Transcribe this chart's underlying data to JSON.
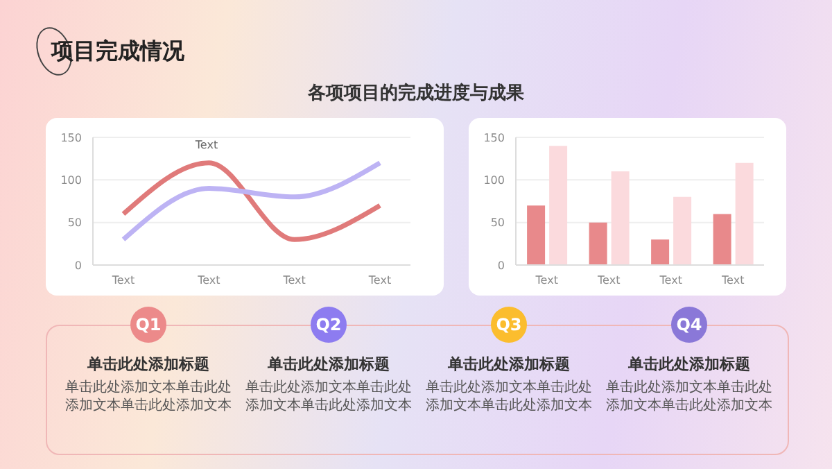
{
  "chart_data": [
    {
      "type": "line",
      "title": "项目完成情况",
      "subtitle": "各项项目的完成进度与成果",
      "categories": [
        "Text",
        "Text",
        "Text",
        "Text"
      ],
      "series": [
        {
          "color": "#e07a7a",
          "values": [
            60,
            120,
            30,
            70
          ]
        },
        {
          "color": "#bdb3f4",
          "values": [
            30,
            90,
            80,
            120
          ]
        }
      ],
      "ylim": [
        0,
        150
      ],
      "yticks": [
        0,
        50,
        100,
        150
      ],
      "grid": "y",
      "annotations": [
        "Text"
      ]
    },
    {
      "type": "bar",
      "categories": [
        "Text",
        "Text",
        "Text",
        "Text"
      ],
      "series": [
        {
          "color": "#e8898b",
          "values": [
            70,
            50,
            30,
            60
          ]
        },
        {
          "color": "#fbdadd",
          "values": [
            140,
            110,
            80,
            120
          ]
        }
      ],
      "ylim": [
        0,
        150
      ],
      "yticks": [
        0,
        50,
        100,
        150
      ],
      "grid": "y"
    },
    {
      "type": "other",
      "categories": [
        "Q1",
        "Q2",
        "Q3",
        "Q4"
      ],
      "colors": [
        "#ec8a8a",
        "#8d7cf0",
        "#fbbd2e",
        "#8a78d8"
      ],
      "annotations": [
        "单击此处添加标题",
        "单击此处添加文本单击此处添加文本单击此处添加文本",
        "单击此处添加标题",
        "单击此处添加文本单击此处添加文本单击此处添加文本",
        "单击此处添加标题",
        "单击此处添加文本单击此处添加文本单击此处添加文本",
        "单击此处添加标题",
        "单击此处添加文本单击此处添加文本单击此处添加文本"
      ]
    }
  ]
}
